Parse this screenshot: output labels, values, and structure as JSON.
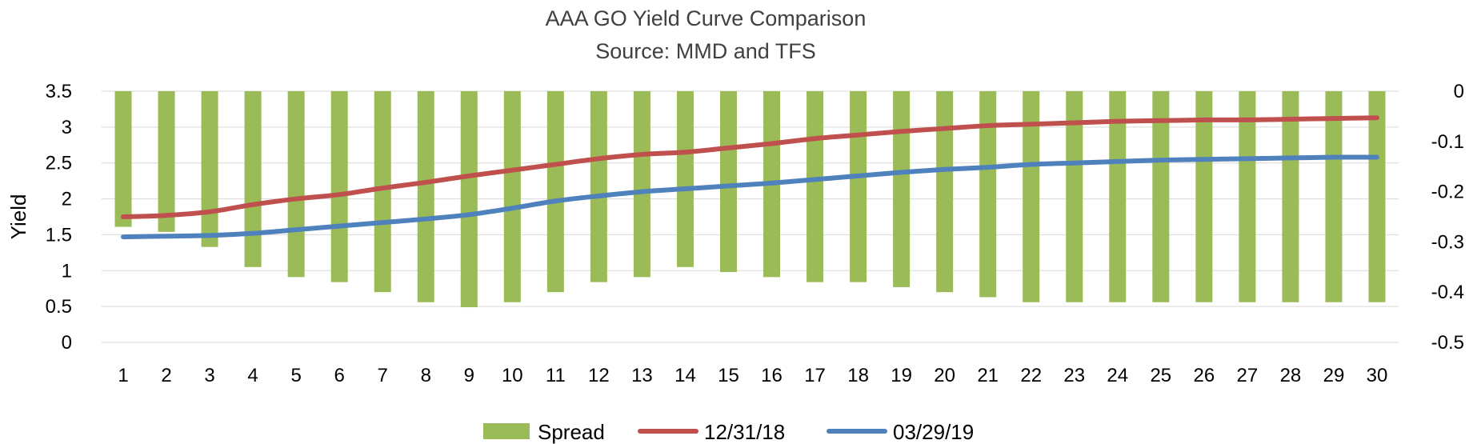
{
  "chart_data": {
    "type": "bar-line-combo",
    "title": "AAA GO Yield Curve Comparison",
    "subtitle": "Source: MMD and TFS",
    "ylabel": "Yield",
    "y_left": {
      "min": 0,
      "max": 3.5,
      "ticks": [
        "0",
        "0.5",
        "1",
        "1.5",
        "2",
        "2.5",
        "3",
        "3.5"
      ]
    },
    "y_right": {
      "min": -0.5,
      "max": 0,
      "ticks": [
        "0",
        "-0.1",
        "-0.2",
        "-0.3",
        "-0.4",
        "-0.5"
      ]
    },
    "grid": true,
    "legend_position": "bottom",
    "categories": [
      "1",
      "2",
      "3",
      "4",
      "5",
      "6",
      "7",
      "8",
      "9",
      "10",
      "11",
      "12",
      "13",
      "14",
      "15",
      "16",
      "17",
      "18",
      "19",
      "20",
      "21",
      "22",
      "23",
      "24",
      "25",
      "26",
      "27",
      "28",
      "29",
      "30"
    ],
    "series": [
      {
        "name": "Spread",
        "kind": "bar",
        "axis": "right",
        "color": "#9bbb59",
        "values": [
          -0.27,
          -0.28,
          -0.31,
          -0.35,
          -0.37,
          -0.38,
          -0.4,
          -0.42,
          -0.43,
          -0.42,
          -0.4,
          -0.38,
          -0.37,
          -0.35,
          -0.36,
          -0.37,
          -0.38,
          -0.38,
          -0.39,
          -0.4,
          -0.41,
          -0.42,
          -0.42,
          -0.42,
          -0.42,
          -0.42,
          -0.42,
          -0.42,
          -0.42,
          -0.42
        ]
      },
      {
        "name": "12/31/18",
        "kind": "line",
        "axis": "left",
        "color": "#c0504d",
        "values": [
          1.75,
          1.77,
          1.82,
          1.92,
          2.0,
          2.06,
          2.15,
          2.23,
          2.32,
          2.4,
          2.48,
          2.56,
          2.62,
          2.65,
          2.71,
          2.77,
          2.84,
          2.89,
          2.94,
          2.98,
          3.02,
          3.04,
          3.06,
          3.08,
          3.09,
          3.1,
          3.1,
          3.11,
          3.12,
          3.13
        ]
      },
      {
        "name": "03/29/19",
        "kind": "line",
        "axis": "left",
        "color": "#4f81bd",
        "values": [
          1.47,
          1.48,
          1.49,
          1.52,
          1.57,
          1.62,
          1.67,
          1.72,
          1.78,
          1.87,
          1.97,
          2.04,
          2.1,
          2.14,
          2.18,
          2.22,
          2.27,
          2.32,
          2.37,
          2.41,
          2.44,
          2.48,
          2.5,
          2.52,
          2.54,
          2.55,
          2.56,
          2.57,
          2.58,
          2.58
        ]
      }
    ]
  }
}
